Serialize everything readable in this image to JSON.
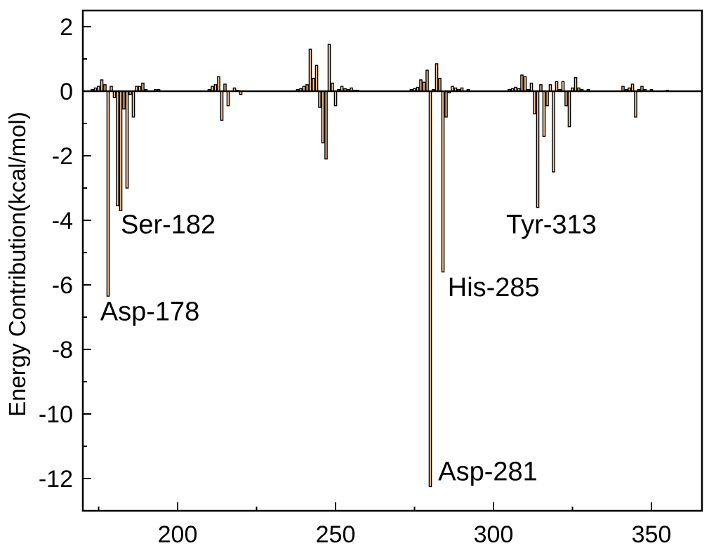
{
  "chart_data": {
    "type": "bar",
    "title": "",
    "xlabel": "",
    "ylabel": "Energy Contribution(kcal/mol)",
    "xlim": [
      170,
      366
    ],
    "ylim": [
      -13,
      2.5
    ],
    "xticks": [
      200,
      250,
      300,
      350
    ],
    "yticks": [
      2,
      0,
      -2,
      -4,
      -6,
      -8,
      -10,
      -12
    ],
    "grid": false,
    "legend": "none",
    "bar_fill": "#f9c79a",
    "bar_stroke": "#000000",
    "series": [
      {
        "x": [
          173,
          174,
          175,
          176,
          177,
          178,
          179,
          180,
          181,
          182,
          183,
          184,
          185,
          186,
          187,
          188,
          189,
          190,
          193,
          194,
          210,
          211,
          212,
          213,
          214,
          215,
          216,
          218,
          219,
          220,
          238,
          239,
          240,
          241,
          242,
          243,
          244,
          245,
          246,
          247,
          248,
          249,
          250,
          251,
          252,
          253,
          254,
          255,
          256,
          257,
          274,
          275,
          276,
          277,
          278,
          279,
          280,
          281,
          282,
          283,
          284,
          285,
          286,
          287,
          288,
          289,
          290,
          292,
          305,
          306,
          307,
          308,
          309,
          310,
          311,
          312,
          313,
          314,
          315,
          316,
          317,
          318,
          319,
          320,
          321,
          322,
          323,
          324,
          325,
          326,
          327,
          328,
          330,
          341,
          342,
          343,
          344,
          345,
          346,
          347,
          348,
          350,
          355
        ],
        "values": [
          0.05,
          0.1,
          0.15,
          0.35,
          0.2,
          -6.35,
          0.15,
          -0.2,
          -3.55,
          -3.7,
          -0.55,
          -3.0,
          -0.1,
          -0.8,
          0.15,
          0.15,
          0.25,
          0.05,
          0.05,
          0.05,
          0.05,
          0.15,
          0.2,
          0.45,
          -0.9,
          0.22,
          -0.45,
          0.1,
          0.03,
          -0.1,
          0.05,
          0.08,
          0.15,
          0.2,
          1.3,
          0.4,
          0.8,
          -0.5,
          -1.6,
          -2.1,
          1.45,
          0.25,
          -0.45,
          0.05,
          0.15,
          0.08,
          0.05,
          0.1,
          0.03,
          0.03,
          0.05,
          0.08,
          0.12,
          0.35,
          0.28,
          0.65,
          -12.25,
          0.05,
          0.85,
          0.4,
          -5.6,
          -0.8,
          -0.05,
          0.15,
          0.1,
          0.05,
          0.1,
          0.05,
          0.05,
          0.08,
          0.12,
          0.08,
          0.5,
          0.45,
          0.05,
          0.25,
          -0.7,
          -3.6,
          0.2,
          -1.4,
          -0.45,
          0.2,
          -2.5,
          0.3,
          0.05,
          0.3,
          -0.45,
          -1.1,
          0.1,
          0.42,
          0.1,
          0.05,
          0.05,
          0.15,
          0.05,
          0.1,
          0.22,
          -0.8,
          0.05,
          0.15,
          0.05,
          0.05,
          0.03
        ]
      }
    ],
    "annotations": [
      {
        "text": "Ser-182",
        "x": 182,
        "y": -4.4
      },
      {
        "text": "Asp-178",
        "x": 175.5,
        "y": -7.1
      },
      {
        "text": "Tyr-313",
        "x": 304,
        "y": -4.4
      },
      {
        "text": "His-285",
        "x": 285.5,
        "y": -6.35
      },
      {
        "text": "Asp-281",
        "x": 282.5,
        "y": -12.05
      }
    ]
  }
}
